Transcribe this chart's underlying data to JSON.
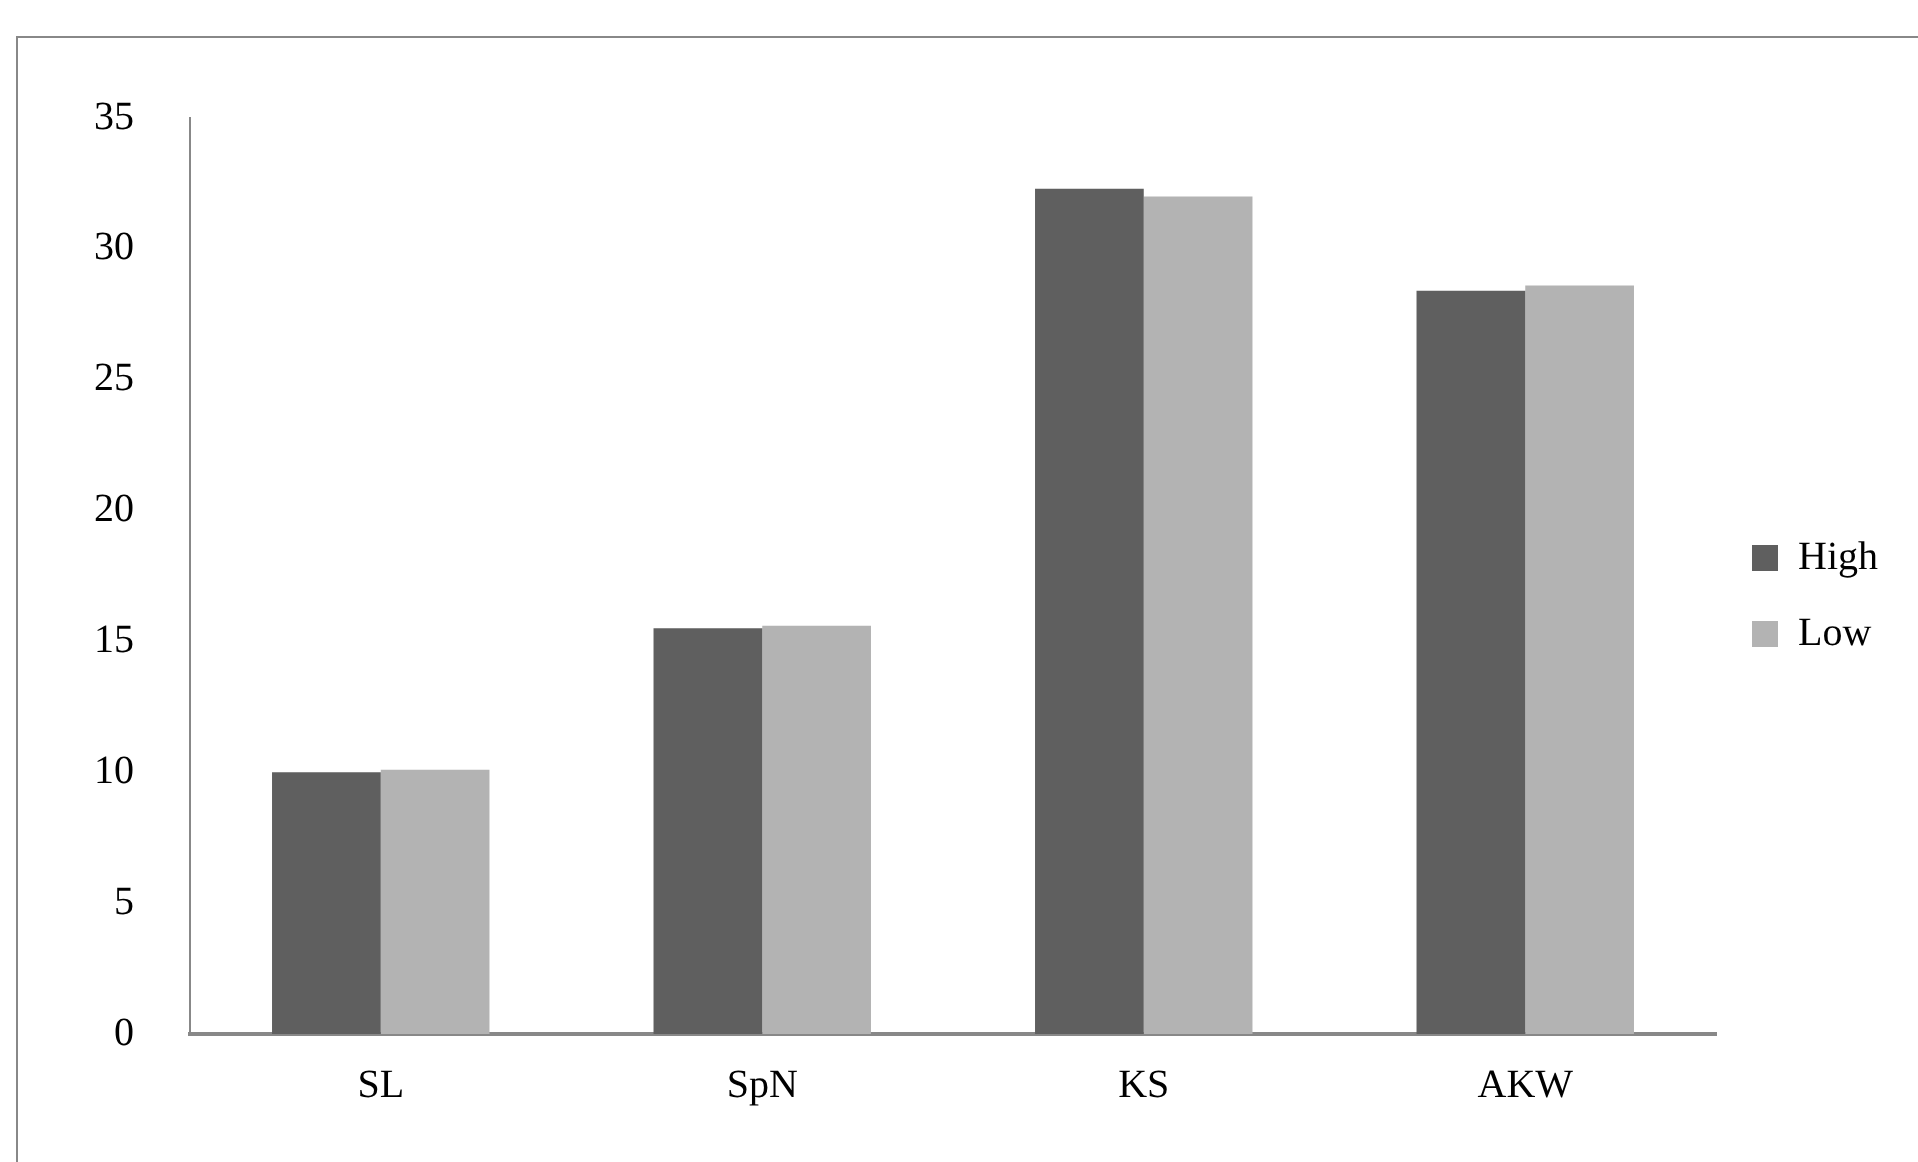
{
  "chart_data": {
    "type": "bar",
    "categories": [
      "SL",
      "SpN",
      "KS",
      "AKW"
    ],
    "series": [
      {
        "name": "High",
        "color": "#5f5f5f",
        "values": [
          10.0,
          15.5,
          32.3,
          28.4
        ]
      },
      {
        "name": "Low",
        "color": "#b3b3b3",
        "values": [
          10.1,
          15.6,
          32.0,
          28.6
        ]
      }
    ],
    "ylim": [
      0,
      35
    ],
    "yticks": [
      0,
      5,
      10,
      15,
      20,
      25,
      30,
      35
    ],
    "grid": false,
    "legend": "right"
  }
}
